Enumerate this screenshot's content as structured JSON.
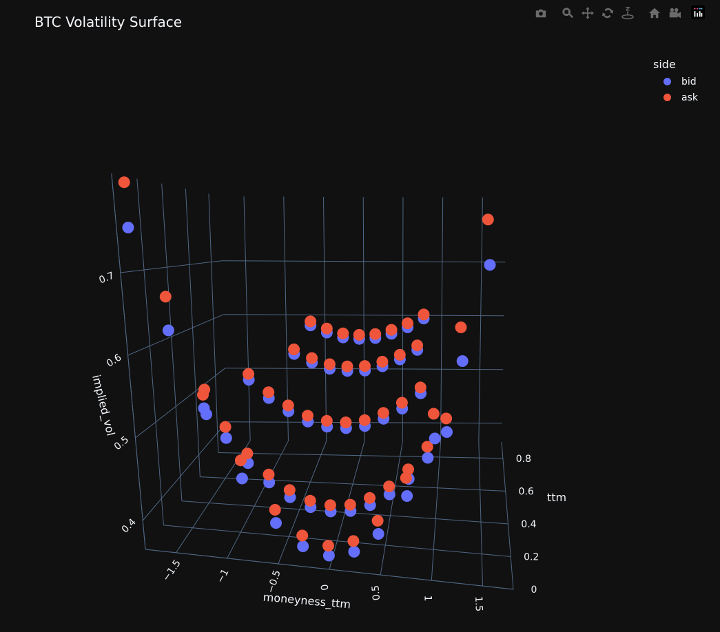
{
  "title": "BTC Volatility Surface",
  "toolbar": [
    {
      "name": "download-png",
      "icon": "camera-icon"
    },
    {
      "name": "zoom",
      "icon": "zoom-icon"
    },
    {
      "name": "pan",
      "icon": "pan-icon"
    },
    {
      "name": "orbit-rotation",
      "icon": "orbit-icon"
    },
    {
      "name": "turntable-rotation",
      "icon": "turntable-icon"
    },
    {
      "name": "reset-camera-default",
      "icon": "home-icon"
    },
    {
      "name": "reset-camera-last-save",
      "icon": "video-camera-icon"
    },
    {
      "name": "plotly-logo",
      "icon": "plotly-logo-icon"
    }
  ],
  "legend": {
    "title": "side",
    "items": [
      {
        "label": "bid",
        "color": "#636efa"
      },
      {
        "label": "ask",
        "color": "#ef553b"
      }
    ]
  },
  "colors": {
    "background": "#111111",
    "grid": "#506784",
    "text": "#f2f5fa"
  },
  "chart_data": {
    "type": "scatter3d",
    "title": "BTC Volatility Surface",
    "xlabel": "moneyness_ttm",
    "ylabel": "ttm",
    "zlabel": "implied_vol",
    "xlim": [
      -1.8,
      1.8
    ],
    "ylim": [
      0,
      0.9
    ],
    "zlim": [
      0.365,
      0.82
    ],
    "xticks": [
      "−1.5",
      "−1",
      "−0.5",
      "0",
      "0.5",
      "1",
      "1.5"
    ],
    "xtick_values": [
      -1.5,
      -1,
      -0.5,
      0,
      0.5,
      1,
      1.5
    ],
    "yticks": [
      "0",
      "0.2",
      "0.4",
      "0.6",
      "0.8"
    ],
    "ytick_values": [
      0,
      0.2,
      0.4,
      0.6,
      0.8
    ],
    "zticks": [
      "0.4",
      "0.5",
      "0.6",
      "0.7"
    ],
    "ztick_values": [
      0.4,
      0.5,
      0.6,
      0.7
    ],
    "grid": true,
    "legend_position": "top-right",
    "series": [
      {
        "name": "bid",
        "color": "#636efa",
        "points": [
          [
            -1.7,
            0.01,
            0.756
          ],
          [
            -1.4,
            0.01,
            0.635
          ],
          [
            -1.1,
            0.01,
            0.537
          ],
          [
            -0.8,
            0.01,
            0.463
          ],
          [
            -0.5,
            0.01,
            0.413
          ],
          [
            -0.25,
            0.01,
            0.388
          ],
          [
            0,
            0.01,
            0.38
          ],
          [
            0.25,
            0.01,
            0.388
          ],
          [
            0.5,
            0.01,
            0.413
          ],
          [
            0.8,
            0.01,
            0.463
          ],
          [
            1.1,
            0.01,
            0.537
          ],
          [
            1.4,
            0.01,
            0.635
          ],
          [
            1.7,
            0.01,
            0.756
          ],
          [
            -1.2,
            0.1,
            0.535
          ],
          [
            -1.0,
            0.1,
            0.5
          ],
          [
            -0.8,
            0.1,
            0.471
          ],
          [
            -0.6,
            0.1,
            0.449
          ],
          [
            -0.4,
            0.1,
            0.433
          ],
          [
            -0.2,
            0.1,
            0.423
          ],
          [
            0,
            0.1,
            0.42
          ],
          [
            0.2,
            0.1,
            0.423
          ],
          [
            0.4,
            0.1,
            0.433
          ],
          [
            0.6,
            0.1,
            0.449
          ],
          [
            0.8,
            0.1,
            0.471
          ],
          [
            1.0,
            0.1,
            0.5
          ],
          [
            1.2,
            0.1,
            0.535
          ],
          [
            -0.9,
            0.3,
            0.557
          ],
          [
            -0.7,
            0.3,
            0.534
          ],
          [
            -0.5,
            0.3,
            0.518
          ],
          [
            -0.3,
            0.3,
            0.506
          ],
          [
            -0.1,
            0.3,
            0.501
          ],
          [
            0.1,
            0.3,
            0.501
          ],
          [
            0.3,
            0.3,
            0.506
          ],
          [
            0.5,
            0.3,
            0.518
          ],
          [
            0.7,
            0.3,
            0.534
          ],
          [
            0.9,
            0.3,
            0.557
          ],
          [
            -0.6,
            0.55,
            0.572
          ],
          [
            -0.4,
            0.55,
            0.56
          ],
          [
            -0.2,
            0.55,
            0.552
          ],
          [
            0,
            0.55,
            0.55
          ],
          [
            0.2,
            0.55,
            0.552
          ],
          [
            0.4,
            0.55,
            0.56
          ],
          [
            0.6,
            0.55,
            0.572
          ],
          [
            0.8,
            0.55,
            0.588
          ],
          [
            -0.6,
            0.8,
            0.592
          ],
          [
            -0.4,
            0.8,
            0.58
          ],
          [
            -0.2,
            0.8,
            0.572
          ],
          [
            0,
            0.8,
            0.57
          ],
          [
            0.2,
            0.8,
            0.572
          ],
          [
            0.4,
            0.8,
            0.58
          ],
          [
            0.6,
            0.8,
            0.592
          ],
          [
            0.8,
            0.8,
            0.608
          ]
        ]
      },
      {
        "name": "ask",
        "color": "#ef553b",
        "points": [
          [
            -1.7,
            0.01,
            0.811
          ],
          [
            -1.4,
            0.01,
            0.676
          ],
          [
            -1.1,
            0.01,
            0.567
          ],
          [
            -0.8,
            0.01,
            0.485
          ],
          [
            -0.5,
            0.01,
            0.429
          ],
          [
            -0.25,
            0.01,
            0.401
          ],
          [
            0,
            0.01,
            0.392
          ],
          [
            0.25,
            0.01,
            0.401
          ],
          [
            0.5,
            0.01,
            0.429
          ],
          [
            0.8,
            0.01,
            0.485
          ],
          [
            1.1,
            0.01,
            0.567
          ],
          [
            1.4,
            0.01,
            0.676
          ],
          [
            1.7,
            0.01,
            0.811
          ],
          [
            -1.2,
            0.1,
            0.552
          ],
          [
            -1.0,
            0.1,
            0.514
          ],
          [
            -0.8,
            0.1,
            0.483
          ],
          [
            -0.6,
            0.1,
            0.459
          ],
          [
            -0.4,
            0.1,
            0.442
          ],
          [
            -0.2,
            0.1,
            0.431
          ],
          [
            0,
            0.1,
            0.428
          ],
          [
            0.2,
            0.1,
            0.431
          ],
          [
            0.4,
            0.1,
            0.442
          ],
          [
            0.6,
            0.1,
            0.459
          ],
          [
            0.8,
            0.1,
            0.483
          ],
          [
            1.0,
            0.1,
            0.514
          ],
          [
            1.2,
            0.1,
            0.552
          ],
          [
            -0.9,
            0.3,
            0.565
          ],
          [
            -0.7,
            0.3,
            0.542
          ],
          [
            -0.5,
            0.3,
            0.526
          ],
          [
            -0.3,
            0.3,
            0.514
          ],
          [
            -0.1,
            0.3,
            0.509
          ],
          [
            0.1,
            0.3,
            0.509
          ],
          [
            0.3,
            0.3,
            0.514
          ],
          [
            0.5,
            0.3,
            0.526
          ],
          [
            0.7,
            0.3,
            0.542
          ],
          [
            0.9,
            0.3,
            0.565
          ],
          [
            -0.6,
            0.55,
            0.579
          ],
          [
            -0.4,
            0.55,
            0.567
          ],
          [
            -0.2,
            0.55,
            0.559
          ],
          [
            0,
            0.55,
            0.557
          ],
          [
            0.2,
            0.55,
            0.559
          ],
          [
            0.4,
            0.55,
            0.567
          ],
          [
            0.6,
            0.55,
            0.579
          ],
          [
            0.8,
            0.55,
            0.595
          ],
          [
            -0.6,
            0.8,
            0.599
          ],
          [
            -0.4,
            0.8,
            0.587
          ],
          [
            -0.2,
            0.8,
            0.579
          ],
          [
            0,
            0.8,
            0.577
          ],
          [
            0.2,
            0.8,
            0.579
          ],
          [
            0.4,
            0.8,
            0.587
          ],
          [
            0.6,
            0.8,
            0.599
          ],
          [
            0.8,
            0.8,
            0.615
          ]
        ]
      }
    ]
  }
}
